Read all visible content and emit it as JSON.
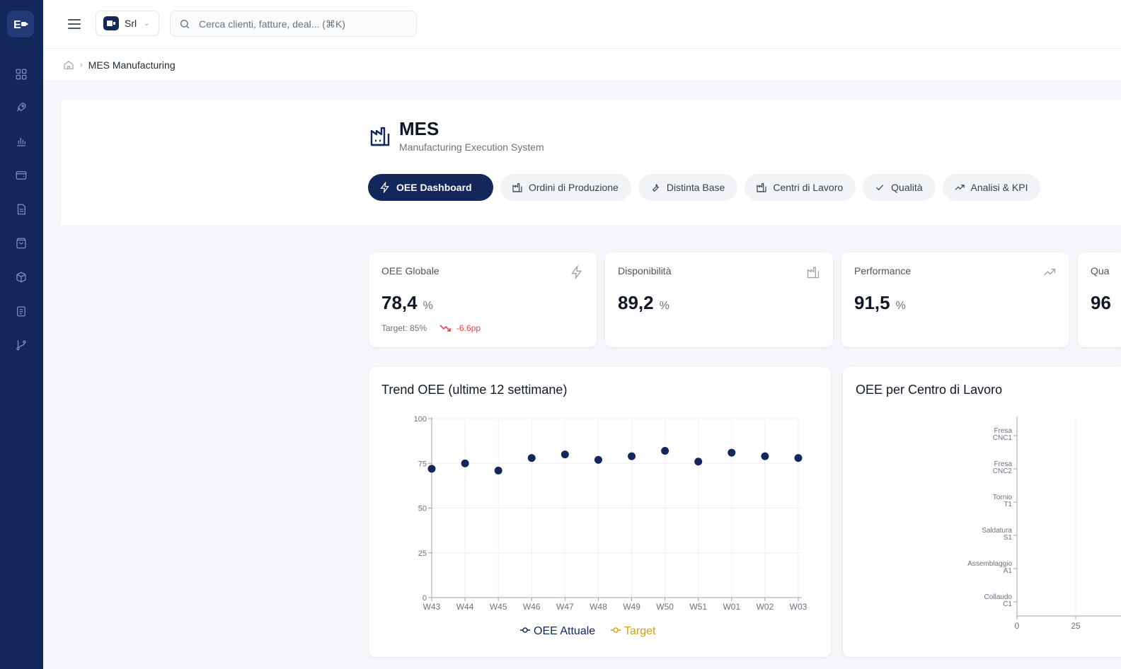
{
  "topbar": {
    "company": "Srl",
    "search_placeholder": "Cerca clienti, fatture, deal... (⌘K)"
  },
  "breadcrumb": {
    "current": "MES Manufacturing"
  },
  "header": {
    "title": "MES",
    "subtitle": "Manufacturing Execution System",
    "tabs": [
      {
        "label": "OEE Dashboard",
        "icon": "bolt-icon"
      },
      {
        "label": "Ordini di Produzione",
        "icon": "factory-icon"
      },
      {
        "label": "Distinta Base",
        "icon": "wrench-icon"
      },
      {
        "label": "Centri di Lavoro",
        "icon": "factory-icon"
      },
      {
        "label": "Qualità",
        "icon": "check-icon"
      },
      {
        "label": "Analisi & KPI",
        "icon": "trend-icon"
      }
    ]
  },
  "kpis": [
    {
      "label": "OEE Globale",
      "value": "78,4",
      "unit": "%",
      "target": "Target: 85%",
      "delta": "-6.6pp",
      "icon": "bolt-icon"
    },
    {
      "label": "Disponibilità",
      "value": "89,2",
      "unit": "%",
      "icon": "factory-icon"
    },
    {
      "label": "Performance",
      "value": "91,5",
      "unit": "%",
      "icon": "trend-icon"
    },
    {
      "label": "Qua",
      "value": "96"
    }
  ],
  "colors": {
    "primary": "#14275a",
    "target": "#d4a017",
    "negative": "#ef4444"
  },
  "chart_data": [
    {
      "type": "scatter",
      "title": "Trend OEE (ultime 12 settimane)",
      "categories": [
        "W43",
        "W44",
        "W45",
        "W46",
        "W47",
        "W48",
        "W49",
        "W50",
        "W51",
        "W01",
        "W02",
        "W03"
      ],
      "series": [
        {
          "name": "OEE Attuale",
          "values": [
            72,
            75,
            71,
            78,
            80,
            77,
            79,
            82,
            76,
            81,
            79,
            78
          ]
        },
        {
          "name": "Target",
          "values": []
        }
      ],
      "yticks": [
        0,
        25,
        50,
        75,
        100
      ],
      "ylim": [
        0,
        100
      ],
      "grid": true,
      "legend": "bottom"
    },
    {
      "type": "bar",
      "orientation": "horizontal",
      "title": "OEE per Centro di Lavoro",
      "categories": [
        "Fresa CNC1",
        "Fresa CNC2",
        "Tornio T1",
        "Saldatura S1",
        "Assemblaggio A1",
        "Collaudo C1"
      ],
      "xticks": [
        "0",
        "25"
      ]
    }
  ]
}
